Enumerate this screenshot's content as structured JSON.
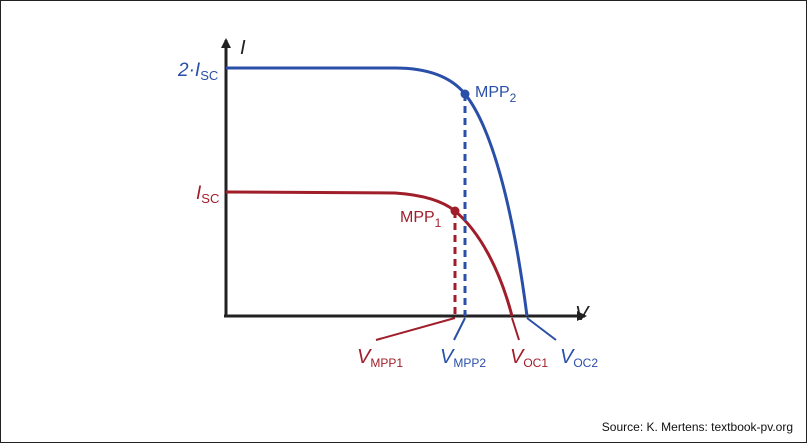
{
  "axes": {
    "y_label": "I",
    "x_label": "V"
  },
  "curves": {
    "blue": {
      "color": "#2a4fa8",
      "y_label_main": "2·I",
      "y_label_sub": "SC",
      "mpp_main": "MPP",
      "mpp_sub": "2",
      "vmpp_main": "V",
      "vmpp_sub": "MPP2",
      "voc_main": "V",
      "voc_sub": "OC2"
    },
    "red": {
      "color": "#a01e2a",
      "y_label_main": "I",
      "y_label_sub": "SC",
      "mpp_main": "MPP",
      "mpp_sub": "1",
      "vmpp_main": "V",
      "vmpp_sub": "MPP1",
      "voc_main": "V",
      "voc_sub": "OC1"
    }
  },
  "source": "Source: K. Mertens: textbook-pv.org"
}
